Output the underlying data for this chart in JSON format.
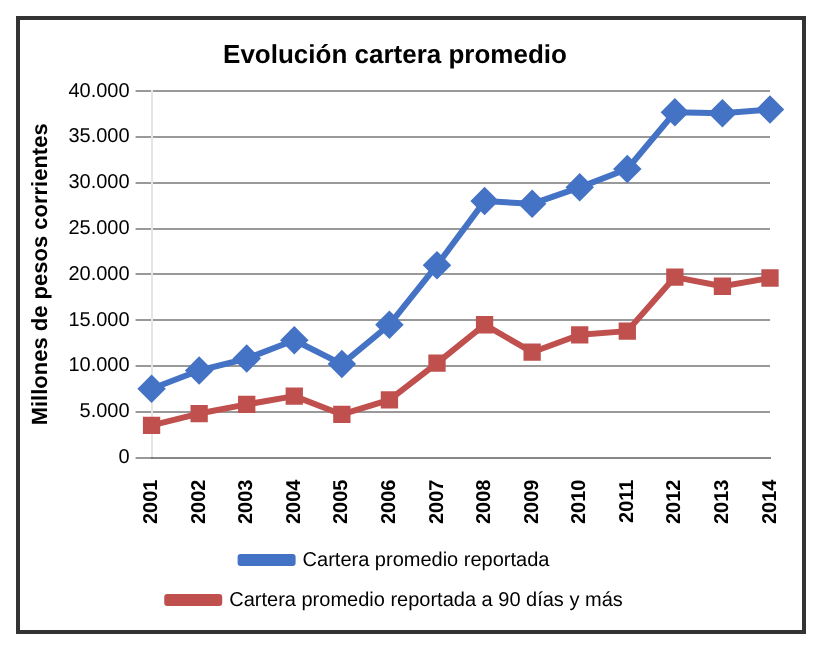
{
  "chart_data": {
    "type": "line",
    "title": "Evolución cartera promedio",
    "ylabel": "Millones de pesos corrientes",
    "categories": [
      "2001",
      "2002",
      "2003",
      "2004",
      "2005",
      "2006",
      "2007",
      "2008",
      "2009",
      "2010",
      "2011",
      "2012",
      "2013",
      "2014"
    ],
    "series": [
      {
        "name": "Cartera promedio reportada",
        "color": "#4472c4",
        "marker": "diamond",
        "values": [
          7500,
          9500,
          10800,
          12800,
          10200,
          14500,
          21000,
          28000,
          27700,
          29500,
          31500,
          37700,
          37600,
          38000
        ]
      },
      {
        "name": "Cartera promedio reportada a 90 días y más",
        "color": "#c0504d",
        "marker": "square",
        "values": [
          3500,
          4800,
          5800,
          6700,
          4700,
          6300,
          10300,
          14500,
          11500,
          13400,
          13800,
          19700,
          18700,
          19600
        ]
      }
    ],
    "ylim": [
      0,
      40000
    ],
    "yticks": [
      0,
      {
        "value": 5000,
        "label": "5.000"
      },
      {
        "value": 10000,
        "label": "10.000"
      },
      {
        "value": 15000,
        "label": "15.000"
      },
      {
        "value": 20000,
        "label": "20.000"
      },
      {
        "value": 25000,
        "label": "25.000"
      },
      {
        "value": 30000,
        "label": "30.000"
      },
      {
        "value": 35000,
        "label": "35.000"
      },
      {
        "value": 40000,
        "label": "40.000"
      }
    ],
    "grid": "y",
    "legend": "bottom"
  }
}
